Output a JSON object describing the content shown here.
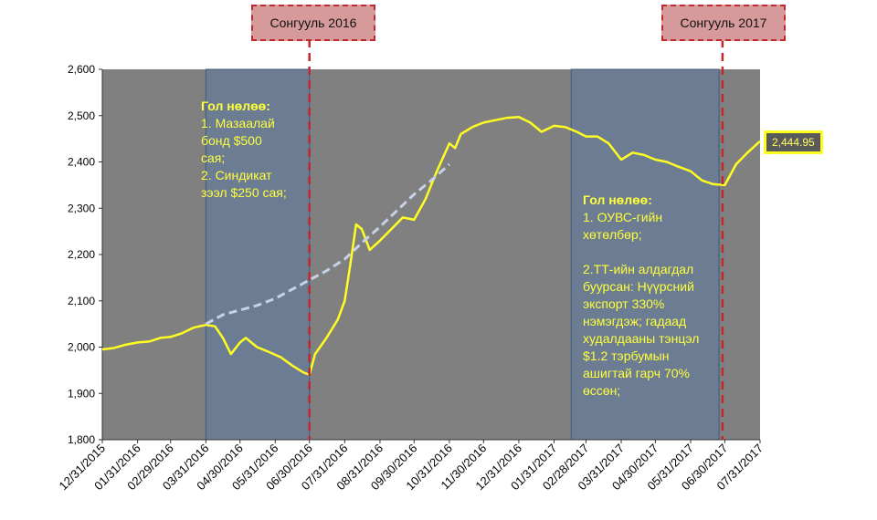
{
  "chart_data": {
    "type": "line",
    "ylim": [
      1800,
      2600
    ],
    "y_ticks": [
      "1,800",
      "1,900",
      "2,000",
      "2,100",
      "2,200",
      "2,300",
      "2,400",
      "2,500",
      "2,600"
    ],
    "x_tick_labels": [
      "12/31/2015",
      "01/31/2016",
      "02/29/2016",
      "03/31/2016",
      "04/30/2016",
      "05/31/2016",
      "06/30/2016",
      "07/31/2016",
      "08/31/2016",
      "09/30/2016",
      "10/31/2016",
      "11/30/2016",
      "12/31/2016",
      "01/31/2017",
      "02/28/2017",
      "03/31/2017",
      "04/30/2017",
      "05/31/2017",
      "06/30/2017",
      "07/31/2017"
    ],
    "grid": false,
    "series": [
      {
        "name": "",
        "style": "solid",
        "color": "#ffff22",
        "x": [
          "2015-12-31",
          "2016-01-10",
          "2016-01-20",
          "2016-01-31",
          "2016-02-10",
          "2016-02-20",
          "2016-02-29",
          "2016-03-10",
          "2016-03-20",
          "2016-03-31",
          "2016-04-08",
          "2016-04-15",
          "2016-04-22",
          "2016-04-30",
          "2016-05-05",
          "2016-05-15",
          "2016-05-25",
          "2016-06-05",
          "2016-06-15",
          "2016-06-25",
          "2016-06-30",
          "2016-07-05",
          "2016-07-15",
          "2016-07-25",
          "2016-07-31",
          "2016-08-05",
          "2016-08-10",
          "2016-08-15",
          "2016-08-22",
          "2016-08-31",
          "2016-09-10",
          "2016-09-20",
          "2016-09-30",
          "2016-10-10",
          "2016-10-20",
          "2016-10-31",
          "2016-11-05",
          "2016-11-10",
          "2016-11-20",
          "2016-11-30",
          "2016-12-10",
          "2016-12-20",
          "2016-12-31",
          "2017-01-10",
          "2017-01-20",
          "2017-01-31",
          "2017-02-10",
          "2017-02-20",
          "2017-02-28",
          "2017-03-10",
          "2017-03-20",
          "2017-03-31",
          "2017-04-10",
          "2017-04-20",
          "2017-04-30",
          "2017-05-10",
          "2017-05-20",
          "2017-05-31",
          "2017-06-10",
          "2017-06-20",
          "2017-06-30",
          "2017-07-10",
          "2017-07-20",
          "2017-07-31"
        ],
        "y": [
          1995,
          1998,
          2005,
          2010,
          2012,
          2020,
          2022,
          2030,
          2042,
          2048,
          2045,
          2020,
          1985,
          2010,
          2020,
          2000,
          1990,
          1978,
          1960,
          1945,
          1940,
          1985,
          2020,
          2060,
          2100,
          2180,
          2265,
          2255,
          2210,
          2230,
          2255,
          2280,
          2275,
          2320,
          2380,
          2440,
          2430,
          2460,
          2475,
          2485,
          2490,
          2495,
          2497,
          2485,
          2465,
          2478,
          2475,
          2465,
          2455,
          2455,
          2440,
          2405,
          2420,
          2415,
          2405,
          2400,
          2390,
          2380,
          2360,
          2352,
          2350,
          2395,
          2420,
          2445
        ]
      },
      {
        "name": "",
        "style": "dashed",
        "color": "#c8d2e6",
        "x": [
          "2016-03-31",
          "2016-04-15",
          "2016-04-30",
          "2016-05-15",
          "2016-05-31",
          "2016-06-15",
          "2016-06-30",
          "2016-07-15",
          "2016-07-31",
          "2016-08-15",
          "2016-08-31",
          "2016-09-15",
          "2016-09-30",
          "2016-10-15",
          "2016-10-31"
        ],
        "y": [
          2050,
          2070,
          2080,
          2090,
          2105,
          2125,
          2145,
          2165,
          2190,
          2225,
          2260,
          2295,
          2330,
          2360,
          2395
        ]
      }
    ],
    "shaded_periods": [
      {
        "from": "2016-03-31",
        "to": "2016-06-30"
      },
      {
        "from": "2017-02-15",
        "to": "2017-06-25"
      }
    ],
    "events": [
      {
        "label": "Сонгууль 2016",
        "date": "2016-06-30"
      },
      {
        "label": "Сонгууль 2017",
        "date": "2017-06-28"
      }
    ],
    "last_value_label": "2,444.95",
    "last_value": 2444.95,
    "annotations": [
      {
        "title": "Гол нөлөө:",
        "lines": [
          "1. Мазаалай",
          "бонд $500",
          "сая;",
          "2. Синдикат",
          "зээл $250 сая;"
        ]
      },
      {
        "title": "Гол нөлөө:",
        "lines": [
          "1. ОУВС-гийн",
          "хөтөлбөр;",
          "",
          "2.ТТ-ийн алдагдал",
          "буурсан: Нүүрсний",
          "экспорт 330%",
          "нэмэгдэж; гадаад",
          "худалдааны тэнцэл",
          "$1.2 тэрбумын",
          "ашигтай гарч 70%",
          "өссөн;"
        ]
      }
    ]
  }
}
